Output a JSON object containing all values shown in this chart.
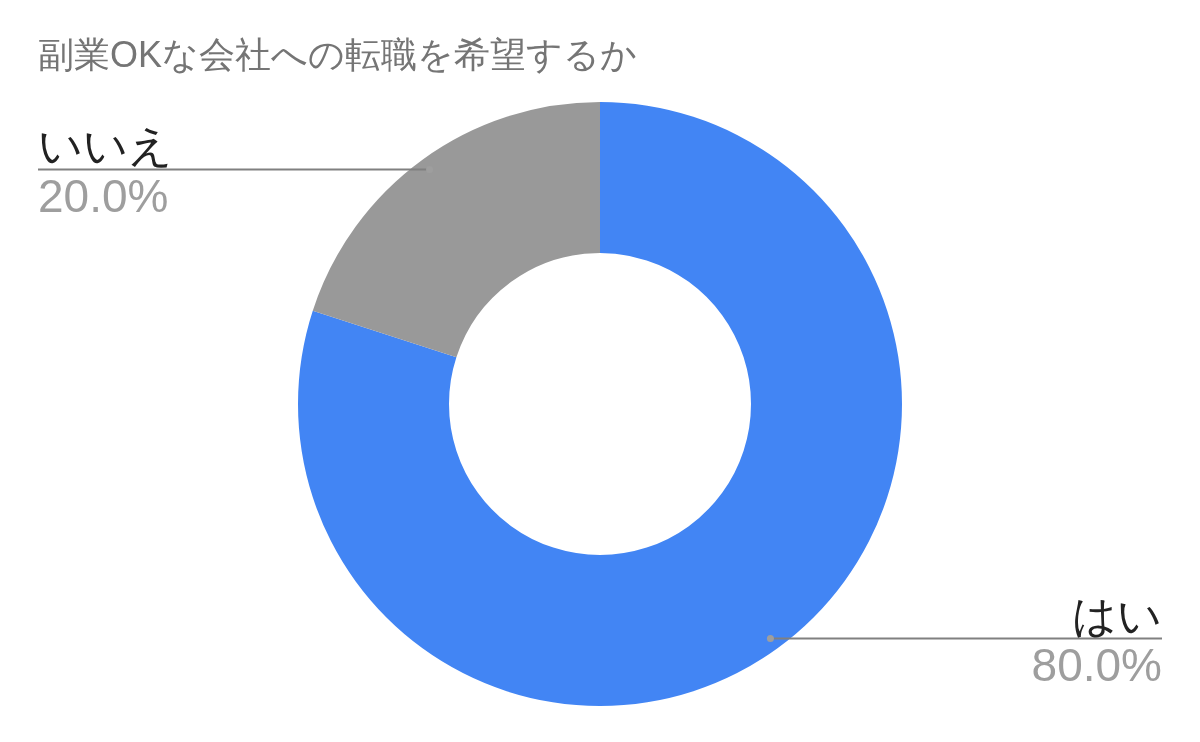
{
  "chart_data": {
    "type": "donut",
    "title": "副業OKな会社への転職を希望するか",
    "categories": [
      "はい",
      "いいえ"
    ],
    "values": [
      80,
      20
    ],
    "colors": [
      "#4285f4",
      "#999999"
    ],
    "value_labels": [
      "80.0%",
      "20.0%"
    ]
  }
}
